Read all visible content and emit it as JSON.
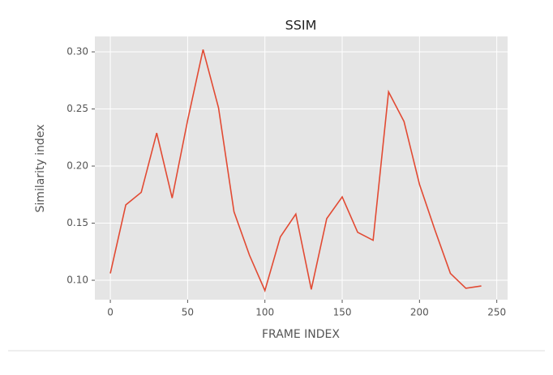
{
  "chart_data": {
    "type": "line",
    "title": "SSIM",
    "x_label": "FRAME INDEX",
    "y_label": "Similarity index",
    "x": [
      0,
      10,
      20,
      30,
      40,
      50,
      60,
      70,
      80,
      90,
      100,
      110,
      120,
      130,
      140,
      150,
      160,
      170,
      180,
      190,
      200,
      210,
      220,
      230,
      240
    ],
    "series": [
      {
        "color": "#e24a33",
        "values": [
          0.106,
          0.166,
          0.177,
          0.229,
          0.172,
          0.24,
          0.302,
          0.251,
          0.16,
          0.122,
          0.091,
          0.138,
          0.158,
          0.092,
          0.154,
          0.173,
          0.142,
          0.135,
          0.265,
          0.239,
          0.184,
          0.144,
          0.106,
          0.093,
          0.095
        ]
      }
    ],
    "xlim": [
      -10,
      257
    ],
    "xticks": [
      0,
      50,
      100,
      150,
      200,
      250
    ],
    "ylim": [
      0.083,
      0.3135
    ],
    "yticks": [
      {
        "value": 0.1,
        "label": "0.10"
      },
      0.15,
      {
        "value": 0.2,
        "label": "0.20"
      },
      0.25,
      {
        "value": 0.3,
        "label": "0.30"
      }
    ],
    "grid": true
  }
}
